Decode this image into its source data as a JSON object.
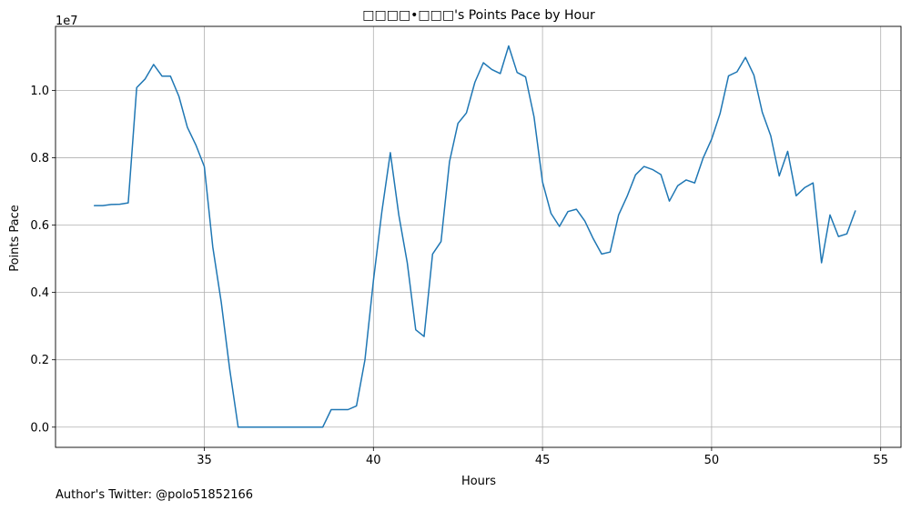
{
  "chart_data": {
    "type": "line",
    "title": "□□□□•□□□'s Points Pace by Hour",
    "xlabel": "Hours",
    "ylabel": "Points Pace",
    "y_offset_text": "1e7",
    "xlim": [
      30.6,
      55.6
    ],
    "ylim": [
      -600000,
      11900000
    ],
    "x_ticks": [
      35,
      40,
      45,
      50,
      55
    ],
    "x_tick_labels": [
      "35",
      "40",
      "45",
      "50",
      "55"
    ],
    "y_ticks": [
      0,
      2000000,
      4000000,
      6000000,
      8000000,
      10000000
    ],
    "y_tick_labels": [
      "0.0",
      "0.2",
      "0.4",
      "0.6",
      "0.8",
      "1.0"
    ],
    "grid": true,
    "line_color": "#1f77b4",
    "series": [
      {
        "x": [
          31.75,
          32.0,
          32.25,
          32.5,
          32.75,
          33.0,
          33.25,
          33.5,
          33.75,
          34.0,
          34.25,
          34.5,
          34.75,
          35.0,
          35.25,
          35.5,
          35.75,
          36.0,
          36.25,
          36.5,
          36.75,
          37.0,
          37.25,
          37.5,
          37.75,
          38.0,
          38.25,
          38.5,
          38.75,
          39.0,
          39.25,
          39.5,
          39.75,
          40.0,
          40.25,
          40.5,
          40.75,
          41.0,
          41.25,
          41.5,
          41.75,
          42.0,
          42.25,
          42.5,
          42.75,
          43.0,
          43.25,
          43.5,
          43.75,
          44.0,
          44.25,
          44.5,
          44.75,
          45.0,
          45.25,
          45.5,
          45.75,
          46.0,
          46.25,
          46.5,
          46.75,
          47.0,
          47.25,
          47.5,
          47.75,
          48.0,
          48.25,
          48.5,
          48.75,
          49.0,
          49.25,
          49.5,
          49.75,
          50.0,
          50.25,
          50.5,
          50.75,
          51.0,
          51.25,
          51.5,
          51.75,
          52.0,
          52.25,
          52.5,
          52.75,
          53.0,
          53.25,
          53.5,
          53.75,
          54.0,
          54.25
        ],
        "values": [
          6580000,
          6580000,
          6610000,
          6620000,
          6660000,
          10080000,
          10340000,
          10770000,
          10420000,
          10420000,
          9820000,
          8900000,
          8380000,
          7740000,
          5350000,
          3710000,
          1720000,
          0,
          0,
          0,
          0,
          0,
          0,
          0,
          0,
          0,
          0,
          0,
          520000,
          520000,
          520000,
          630000,
          2000000,
          4350000,
          6400000,
          8150000,
          6300000,
          4880000,
          2890000,
          2690000,
          5140000,
          5510000,
          7880000,
          9020000,
          9330000,
          10240000,
          10820000,
          10620000,
          10500000,
          11320000,
          10530000,
          10400000,
          9210000,
          7280000,
          6350000,
          5960000,
          6400000,
          6470000,
          6120000,
          5600000,
          5140000,
          5200000,
          6300000,
          6850000,
          7490000,
          7740000,
          7650000,
          7500000,
          6710000,
          7170000,
          7340000,
          7250000,
          7990000,
          8550000,
          9310000,
          10430000,
          10550000,
          10980000,
          10450000,
          9350000,
          8650000,
          7460000,
          8190000,
          6870000,
          7110000,
          7250000,
          4880000,
          6300000,
          5660000,
          5740000,
          6420000
        ]
      }
    ]
  },
  "footer": {
    "text": "Author's Twitter: @polo51852166"
  }
}
